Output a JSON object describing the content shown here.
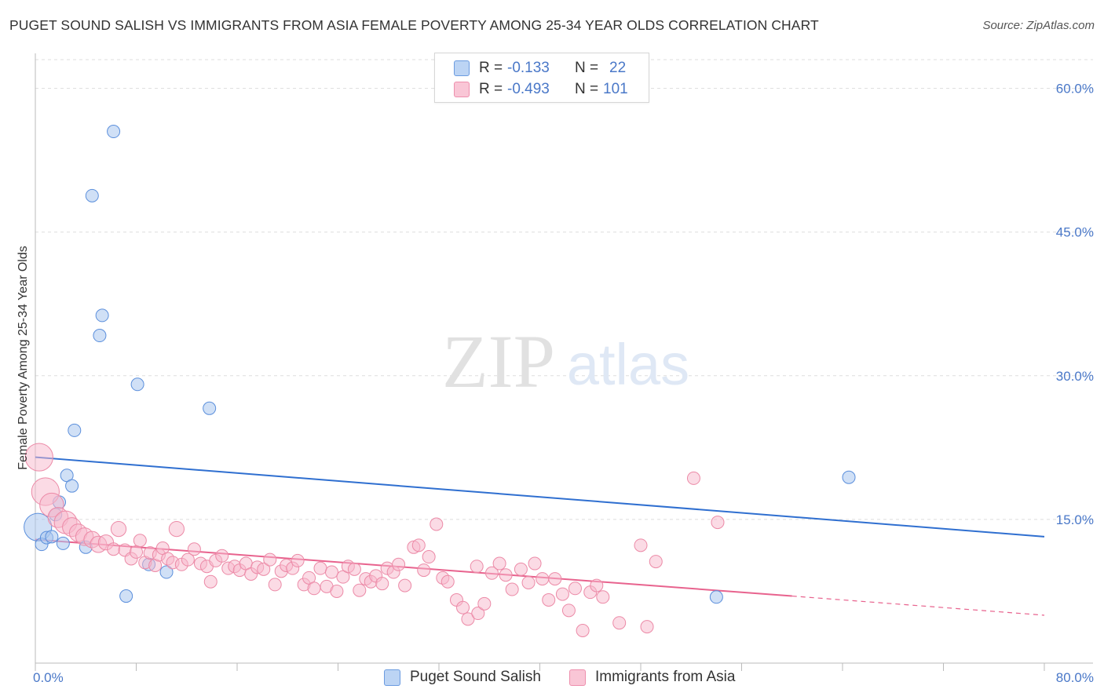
{
  "title": "PUGET SOUND SALISH VS IMMIGRANTS FROM ASIA FEMALE POVERTY AMONG 25-34 YEAR OLDS CORRELATION CHART",
  "source": "Source: ZipAtlas.com",
  "watermark": {
    "zip": "ZIP",
    "atlas": "atlas"
  },
  "colors": {
    "blue_fill": "#a9c6ef",
    "blue_stroke": "#5b8fdc",
    "blue_line": "#2f6fd0",
    "pink_fill": "#f7b8cb",
    "pink_stroke": "#ec8aa7",
    "pink_line": "#e8638e",
    "tick_label": "#4a78c8",
    "grid": "#dddddd"
  },
  "legend": {
    "rows": [
      {
        "r_label": "R =",
        "r_value": "-0.133",
        "n_label": "N =",
        "n_value": "22",
        "series": "blue"
      },
      {
        "r_label": "R =",
        "r_value": "-0.493",
        "n_label": "N =",
        "n_value": "101",
        "series": "pink"
      }
    ]
  },
  "bottom_legend": [
    {
      "label": "Puget Sound Salish",
      "series": "blue"
    },
    {
      "label": "Immigrants from Asia",
      "series": "pink"
    }
  ],
  "chart_data": {
    "type": "scatter",
    "title": "PUGET SOUND SALISH VS IMMIGRANTS FROM ASIA FEMALE POVERTY AMONG 25-34 YEAR OLDS CORRELATION CHART",
    "xlabel": "",
    "ylabel": "Female Poverty Among 25-34 Year Olds",
    "xlim": [
      0,
      80
    ],
    "ylim": [
      0,
      63
    ],
    "x_tick_labels": [
      "0.0%",
      "80.0%"
    ],
    "y_ticks": [
      15,
      30,
      45,
      60
    ],
    "y_tick_labels": [
      "15.0%",
      "30.0%",
      "45.0%",
      "60.0%"
    ],
    "grid": true,
    "series": [
      {
        "name": "Puget Sound Salish",
        "color": "blue",
        "points": [
          [
            0.2,
            14.2,
            2.2
          ],
          [
            0.5,
            12.4,
            1
          ],
          [
            0.9,
            13.1,
            1
          ],
          [
            1.3,
            13.2,
            1
          ],
          [
            1.6,
            15.5,
            1
          ],
          [
            1.9,
            16.8,
            1
          ],
          [
            2.2,
            12.5,
            1
          ],
          [
            2.5,
            19.6,
            1
          ],
          [
            2.9,
            18.5,
            1
          ],
          [
            3.1,
            24.3,
            1
          ],
          [
            4.0,
            12.1,
            1
          ],
          [
            4.5,
            48.8,
            1
          ],
          [
            5.1,
            34.2,
            1
          ],
          [
            5.3,
            36.3,
            1
          ],
          [
            6.2,
            55.5,
            1
          ],
          [
            7.2,
            7.0,
            1
          ],
          [
            8.1,
            29.1,
            1
          ],
          [
            9.0,
            10.3,
            1
          ],
          [
            10.4,
            9.5,
            1
          ],
          [
            13.8,
            26.6,
            1
          ],
          [
            54.0,
            6.9,
            1
          ],
          [
            64.5,
            19.4,
            1
          ]
        ],
        "trend": {
          "x0": 0,
          "y0": 21.5,
          "x1": 80,
          "y1": 13.2
        }
      },
      {
        "name": "Immigrants from Asia",
        "color": "pink",
        "points": [
          [
            0.3,
            21.5,
            2.2
          ],
          [
            0.8,
            17.9,
            2.2
          ],
          [
            1.3,
            16.5,
            1.9
          ],
          [
            1.8,
            15.2,
            1.6
          ],
          [
            2.4,
            14.7,
            1.8
          ],
          [
            2.9,
            14.2,
            1.5
          ],
          [
            3.4,
            13.6,
            1.4
          ],
          [
            3.9,
            13.2,
            1.4
          ],
          [
            4.5,
            12.9,
            1.3
          ],
          [
            5.0,
            12.4,
            1.3
          ],
          [
            5.6,
            12.6,
            1.2
          ],
          [
            6.2,
            11.9,
            1
          ],
          [
            6.6,
            14.0,
            1.2
          ],
          [
            7.1,
            11.8,
            1
          ],
          [
            7.6,
            10.9,
            1
          ],
          [
            8.0,
            11.6,
            1
          ],
          [
            8.3,
            12.8,
            1
          ],
          [
            8.7,
            10.5,
            1
          ],
          [
            9.1,
            11.5,
            1
          ],
          [
            9.5,
            10.2,
            1
          ],
          [
            9.8,
            11.3,
            1
          ],
          [
            10.1,
            12.0,
            1
          ],
          [
            10.5,
            10.9,
            1
          ],
          [
            10.9,
            10.5,
            1
          ],
          [
            11.2,
            14.0,
            1.2
          ],
          [
            11.6,
            10.3,
            1
          ],
          [
            12.1,
            10.8,
            1
          ],
          [
            12.6,
            11.9,
            1
          ],
          [
            13.1,
            10.4,
            1
          ],
          [
            13.6,
            10.1,
            1
          ],
          [
            13.9,
            8.5,
            1
          ],
          [
            14.3,
            10.7,
            1
          ],
          [
            14.8,
            11.2,
            1
          ],
          [
            15.3,
            9.9,
            1
          ],
          [
            15.8,
            10.1,
            1
          ],
          [
            16.2,
            9.7,
            1
          ],
          [
            16.7,
            10.4,
            1
          ],
          [
            17.1,
            9.3,
            1
          ],
          [
            17.6,
            10.0,
            1
          ],
          [
            18.1,
            9.8,
            1
          ],
          [
            18.6,
            10.8,
            1
          ],
          [
            19.0,
            8.2,
            1
          ],
          [
            19.5,
            9.6,
            1
          ],
          [
            19.9,
            10.2,
            1
          ],
          [
            20.4,
            9.9,
            1
          ],
          [
            20.8,
            10.7,
            1
          ],
          [
            21.3,
            8.2,
            1
          ],
          [
            21.7,
            8.9,
            1
          ],
          [
            22.1,
            7.8,
            1
          ],
          [
            22.6,
            9.9,
            1
          ],
          [
            23.1,
            8.0,
            1
          ],
          [
            23.5,
            9.5,
            1
          ],
          [
            23.9,
            7.5,
            1
          ],
          [
            24.4,
            9.0,
            1
          ],
          [
            24.8,
            10.1,
            1
          ],
          [
            25.3,
            9.8,
            1
          ],
          [
            25.7,
            7.6,
            1
          ],
          [
            26.2,
            8.8,
            1
          ],
          [
            26.6,
            8.5,
            1
          ],
          [
            27.0,
            9.1,
            1
          ],
          [
            27.5,
            8.3,
            1
          ],
          [
            27.9,
            9.9,
            1
          ],
          [
            28.4,
            9.5,
            1
          ],
          [
            28.8,
            10.3,
            1
          ],
          [
            29.3,
            8.1,
            1
          ],
          [
            30.0,
            12.1,
            1
          ],
          [
            30.4,
            12.3,
            1
          ],
          [
            30.8,
            9.7,
            1
          ],
          [
            31.2,
            11.1,
            1
          ],
          [
            31.8,
            14.5,
            1
          ],
          [
            32.3,
            8.9,
            1
          ],
          [
            32.7,
            8.5,
            1
          ],
          [
            33.4,
            6.6,
            1
          ],
          [
            33.9,
            5.8,
            1
          ],
          [
            34.3,
            4.6,
            1
          ],
          [
            35.1,
            5.2,
            1
          ],
          [
            35.6,
            6.2,
            1
          ],
          [
            36.2,
            9.4,
            1
          ],
          [
            36.8,
            10.4,
            1
          ],
          [
            37.3,
            9.2,
            1
          ],
          [
            37.8,
            7.7,
            1
          ],
          [
            38.5,
            9.8,
            1
          ],
          [
            39.1,
            8.4,
            1
          ],
          [
            39.6,
            10.4,
            1
          ],
          [
            40.2,
            8.8,
            1
          ],
          [
            40.7,
            6.6,
            1
          ],
          [
            41.2,
            8.8,
            1
          ],
          [
            41.8,
            7.2,
            1
          ],
          [
            42.3,
            5.5,
            1
          ],
          [
            42.8,
            7.8,
            1
          ],
          [
            43.4,
            3.4,
            1
          ],
          [
            44.0,
            7.4,
            1
          ],
          [
            44.5,
            8.1,
            1
          ],
          [
            45.0,
            6.9,
            1
          ],
          [
            46.3,
            4.2,
            1
          ],
          [
            48.0,
            12.3,
            1
          ],
          [
            48.5,
            3.8,
            1
          ],
          [
            49.2,
            10.6,
            1
          ],
          [
            52.2,
            19.3,
            1
          ],
          [
            54.1,
            14.7,
            1
          ],
          [
            35.0,
            10.1,
            1
          ]
        ],
        "trend": {
          "x0": 0,
          "y0": 12.9,
          "x1": 60,
          "y1": 7.0,
          "dash_to_x": 80,
          "dash_to_y": 5.0
        }
      }
    ]
  }
}
